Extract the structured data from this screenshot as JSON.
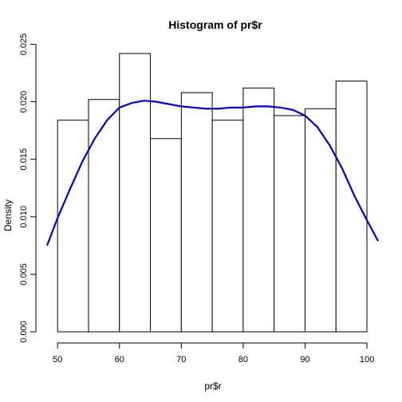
{
  "chart_data": {
    "type": "bar",
    "title": "Histogram of pr$r",
    "xlabel": "pr$r",
    "ylabel": "Density",
    "bins": [
      {
        "start": 50,
        "end": 55,
        "density": 0.0184
      },
      {
        "start": 55,
        "end": 60,
        "density": 0.0202
      },
      {
        "start": 60,
        "end": 65,
        "density": 0.0242
      },
      {
        "start": 65,
        "end": 70,
        "density": 0.0168
      },
      {
        "start": 70,
        "end": 75,
        "density": 0.0208
      },
      {
        "start": 75,
        "end": 80,
        "density": 0.0184
      },
      {
        "start": 80,
        "end": 85,
        "density": 0.0212
      },
      {
        "start": 85,
        "end": 90,
        "density": 0.0188
      },
      {
        "start": 90,
        "end": 95,
        "density": 0.0194
      },
      {
        "start": 95,
        "end": 100,
        "density": 0.0218
      }
    ],
    "density_curve": {
      "x": [
        48.3,
        50,
        52,
        54,
        56,
        58,
        60,
        62,
        64,
        66,
        68,
        70,
        72,
        74,
        76,
        78,
        80,
        82,
        84,
        86,
        88,
        90,
        92,
        94,
        96,
        98,
        100,
        101.8
      ],
      "y": [
        0.0075,
        0.0099,
        0.0124,
        0.0148,
        0.0168,
        0.0184,
        0.0195,
        0.0199,
        0.0201,
        0.02,
        0.0198,
        0.0196,
        0.0195,
        0.0194,
        0.0194,
        0.0195,
        0.0195,
        0.0196,
        0.0196,
        0.0195,
        0.0193,
        0.0188,
        0.0178,
        0.0162,
        0.0142,
        0.0118,
        0.0097,
        0.0079
      ],
      "color": "#0000CD"
    },
    "xlim": [
      48.3,
      101.8
    ],
    "ylim": [
      0,
      0.0258
    ],
    "xticks": [
      50,
      60,
      70,
      80,
      90,
      100
    ],
    "xtick_labels": [
      "50",
      "60",
      "70",
      "80",
      "90",
      "100"
    ],
    "yticks": [
      0,
      0.005,
      0.01,
      0.015,
      0.02,
      0.025
    ],
    "ytick_labels": [
      "0.000",
      "0.005",
      "0.010",
      "0.015",
      "0.020",
      "0.025"
    ],
    "grid": false,
    "legend": "none"
  }
}
